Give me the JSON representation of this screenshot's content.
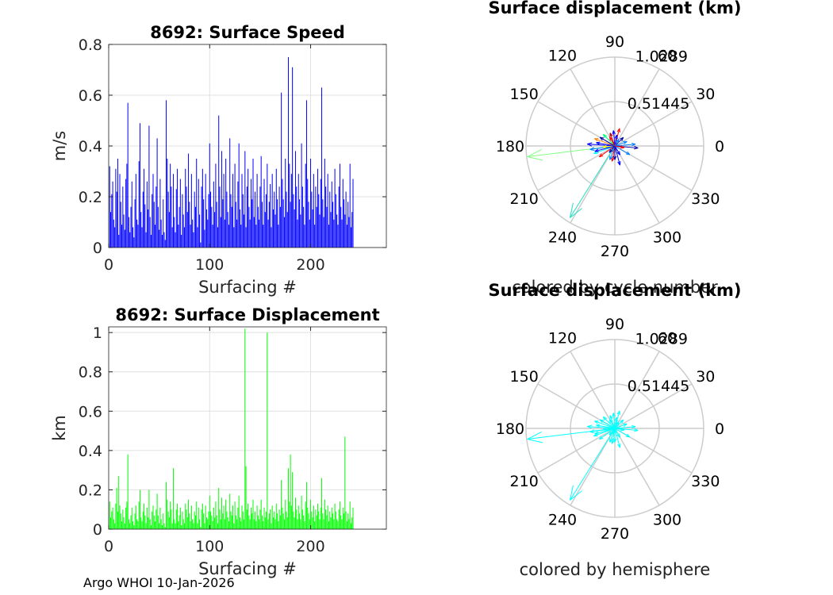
{
  "footer": "Argo WHOI 10-Jan-2026",
  "colors": {
    "speed_bars": "#0000ff",
    "displacement_bars": "#00ff00",
    "hemisphere_arrows": "#00ffff",
    "grid": "#e0e0e0",
    "polar_grid": "#cccccc",
    "axes": "#262626"
  },
  "chart_data": [
    {
      "type": "bar",
      "title": "8692: Surface Speed",
      "xlabel": "Surfacing #",
      "ylabel": "m/s",
      "xlim": [
        0,
        275
      ],
      "ylim": [
        0,
        0.8
      ],
      "xticks": [
        0,
        100,
        200
      ],
      "yticks": [
        0,
        0.2,
        0.4,
        0.6,
        0.8
      ],
      "grid": true,
      "x_start": 1,
      "values": [
        0.32,
        0.14,
        0.21,
        0.26,
        0.11,
        0.08,
        0.31,
        0.22,
        0.35,
        0.05,
        0.29,
        0.18,
        0.09,
        0.24,
        0.13,
        0.07,
        0.27,
        0.33,
        0.57,
        0.12,
        0.06,
        0.16,
        0.26,
        0.08,
        0.04,
        0.19,
        0.29,
        0.11,
        0.09,
        0.34,
        0.49,
        0.14,
        0.08,
        0.22,
        0.31,
        0.17,
        0.06,
        0.26,
        0.15,
        0.48,
        0.12,
        0.05,
        0.21,
        0.29,
        0.18,
        0.09,
        0.24,
        0.43,
        0.16,
        0.07,
        0.27,
        0.11,
        0.05,
        0.19,
        0.06,
        0.03,
        0.58,
        0.35,
        0.22,
        0.14,
        0.33,
        0.24,
        0.08,
        0.29,
        0.12,
        0.06,
        0.23,
        0.31,
        0.09,
        0.16,
        0.27,
        0.05,
        0.21,
        0.13,
        0.08,
        0.31,
        0.24,
        0.14,
        0.37,
        0.18,
        0.09,
        0.29,
        0.11,
        0.06,
        0.22,
        0.16,
        0.35,
        0.08,
        0.27,
        0.13,
        0.02,
        0.24,
        0.31,
        0.19,
        0.07,
        0.29,
        0.15,
        0.11,
        0.21,
        0.41,
        0.22,
        0.16,
        0.09,
        0.26,
        0.14,
        0.33,
        0.18,
        0.08,
        0.52,
        0.24,
        0.12,
        0.38,
        0.19,
        0.29,
        0.11,
        0.35,
        0.22,
        0.14,
        0.09,
        0.43,
        0.21,
        0.16,
        0.29,
        0.08,
        0.33,
        0.18,
        0.11,
        0.26,
        0.41,
        0.15,
        0.09,
        0.29,
        0.21,
        0.13,
        0.38,
        0.08,
        0.24,
        0.31,
        0.16,
        0.11,
        0.27,
        0.19,
        0.35,
        0.12,
        0.22,
        0.09,
        0.29,
        0.16,
        0.11,
        0.24,
        0.36,
        0.18,
        0.09,
        0.27,
        0.14,
        0.21,
        0.33,
        0.11,
        0.18,
        0.25,
        0.08,
        0.29,
        0.15,
        0.22,
        0.13,
        0.31,
        0.19,
        0.09,
        0.24,
        0.16,
        0.61,
        0.27,
        0.19,
        0.12,
        0.35,
        0.22,
        0.14,
        0.75,
        0.33,
        0.18,
        0.29,
        0.71,
        0.21,
        0.15,
        0.38,
        0.24,
        0.11,
        0.29,
        0.19,
        0.13,
        0.41,
        0.24,
        0.16,
        0.09,
        0.33,
        0.58,
        0.27,
        0.18,
        0.11,
        0.35,
        0.22,
        0.15,
        0.29,
        0.09,
        0.24,
        0.16,
        0.31,
        0.21,
        0.13,
        0.27,
        0.63,
        0.19,
        0.12,
        0.35,
        0.24,
        0.16,
        0.29,
        0.09,
        0.22,
        0.14,
        0.26,
        0.18,
        0.11,
        0.31,
        0.21,
        0.13,
        0.09,
        0.24,
        0.33,
        0.16,
        0.11,
        0.27,
        0.19,
        0.13,
        0.22,
        0.09,
        0.18,
        0.12,
        0.33,
        0.08,
        0.14,
        0.27
      ],
      "bar_color": "#0000ff"
    },
    {
      "type": "scatter",
      "subtype": "polar-compass",
      "title": "Surface displacement (km)",
      "caption": "colored by cycle number",
      "rmax": 1.0289,
      "rticks": [
        "0.51445",
        "1.0289"
      ],
      "angle_labels": [
        "0",
        "30",
        "60",
        "90",
        "120",
        "150",
        "180",
        "210",
        "240",
        "270",
        "300",
        "330"
      ],
      "arrow_palette": [
        "#0000aa",
        "#0000ff",
        "#0080ff",
        "#00ffff",
        "#00ff80",
        "#80ff00",
        "#ffff00",
        "#ff8000",
        "#ff0000",
        "#aa0000"
      ],
      "arrows": [
        {
          "r": 1.02,
          "theta": 187,
          "c": "#80ff80"
        },
        {
          "r": 0.98,
          "theta": 238,
          "c": "#20e0c0"
        },
        {
          "r": 0.32,
          "theta": 176,
          "c": "#0000ff"
        },
        {
          "r": 0.29,
          "theta": 188,
          "c": "#0080ff"
        },
        {
          "r": 0.22,
          "theta": 215,
          "c": "#ff0000"
        },
        {
          "r": 0.25,
          "theta": 160,
          "c": "#ff8000"
        },
        {
          "r": 0.18,
          "theta": 95,
          "c": "#0000ff"
        },
        {
          "r": 0.21,
          "theta": 75,
          "c": "#ff0000"
        },
        {
          "r": 0.16,
          "theta": 110,
          "c": "#aa0000"
        },
        {
          "r": 0.24,
          "theta": 5,
          "c": "#0080ff"
        },
        {
          "r": 0.27,
          "theta": 355,
          "c": "#0000aa"
        },
        {
          "r": 0.2,
          "theta": 330,
          "c": "#0080ff"
        },
        {
          "r": 0.23,
          "theta": 285,
          "c": "#0000ff"
        },
        {
          "r": 0.18,
          "theta": 260,
          "c": "#ff0000"
        },
        {
          "r": 0.26,
          "theta": 200,
          "c": "#00ffff"
        },
        {
          "r": 0.14,
          "theta": 45,
          "c": "#0000aa"
        },
        {
          "r": 0.19,
          "theta": 135,
          "c": "#00ff80"
        },
        {
          "r": 0.12,
          "theta": 300,
          "c": "#0000ff"
        },
        {
          "r": 0.15,
          "theta": 20,
          "c": "#0080ff"
        },
        {
          "r": 0.22,
          "theta": 170,
          "c": "#0000ff"
        },
        {
          "r": 0.1,
          "theta": 230,
          "c": "#0000aa"
        },
        {
          "r": 0.17,
          "theta": 250,
          "c": "#0080ff"
        },
        {
          "r": 0.13,
          "theta": 80,
          "c": "#0000ff"
        },
        {
          "r": 0.2,
          "theta": 150,
          "c": "#0000aa"
        },
        {
          "r": 0.11,
          "theta": 350,
          "c": "#ff0000"
        },
        {
          "r": 0.16,
          "theta": 270,
          "c": "#0000aa"
        },
        {
          "r": 0.14,
          "theta": 185,
          "c": "#ffff00"
        },
        {
          "r": 0.09,
          "theta": 60,
          "c": "#0080ff"
        },
        {
          "r": 0.24,
          "theta": 195,
          "c": "#0000ff"
        },
        {
          "r": 0.12,
          "theta": 120,
          "c": "#ff0000"
        }
      ]
    },
    {
      "type": "bar",
      "title": "8692: Surface Displacement",
      "xlabel": "Surfacing #",
      "ylabel": "km",
      "xlim": [
        0,
        275
      ],
      "ylim": [
        0,
        1.0289
      ],
      "xticks": [
        0,
        100,
        200
      ],
      "yticks": [
        0,
        0.2,
        0.4,
        0.6,
        0.8,
        1
      ],
      "grid": true,
      "x_start": 1,
      "values": [
        0.14,
        0.06,
        0.09,
        0.11,
        0.05,
        0.03,
        0.13,
        0.21,
        0.09,
        0.27,
        0.12,
        0.08,
        0.04,
        0.1,
        0.06,
        0.03,
        0.11,
        0.14,
        0.38,
        0.05,
        0.03,
        0.07,
        0.11,
        0.04,
        0.02,
        0.08,
        0.12,
        0.05,
        0.04,
        0.14,
        0.2,
        0.06,
        0.04,
        0.09,
        0.13,
        0.07,
        0.03,
        0.11,
        0.06,
        0.2,
        0.05,
        0.02,
        0.09,
        0.12,
        0.07,
        0.04,
        0.1,
        0.18,
        0.07,
        0.03,
        0.11,
        0.05,
        0.02,
        0.08,
        0.03,
        0.01,
        0.24,
        0.15,
        0.09,
        0.06,
        0.14,
        0.1,
        0.03,
        0.31,
        0.05,
        0.03,
        0.1,
        0.13,
        0.04,
        0.07,
        0.11,
        0.02,
        0.09,
        0.05,
        0.03,
        0.13,
        0.1,
        0.06,
        0.15,
        0.08,
        0.04,
        0.12,
        0.05,
        0.03,
        0.09,
        0.07,
        0.14,
        0.03,
        0.11,
        0.05,
        0.01,
        0.1,
        0.13,
        0.08,
        0.03,
        0.12,
        0.06,
        0.05,
        0.09,
        0.17,
        0.09,
        0.07,
        0.04,
        0.11,
        0.06,
        0.14,
        0.07,
        0.03,
        0.21,
        0.1,
        0.05,
        0.16,
        0.08,
        0.12,
        0.05,
        0.15,
        0.09,
        0.06,
        0.04,
        0.18,
        0.09,
        0.07,
        0.12,
        0.03,
        0.14,
        0.07,
        0.05,
        0.11,
        0.17,
        0.06,
        0.04,
        0.12,
        0.09,
        0.05,
        1.02,
        0.32,
        0.1,
        0.13,
        0.07,
        0.05,
        0.11,
        0.08,
        0.15,
        0.05,
        0.09,
        0.04,
        0.12,
        0.07,
        0.05,
        0.1,
        0.15,
        0.07,
        0.04,
        0.11,
        0.06,
        0.09,
        1.0,
        0.05,
        0.08,
        0.1,
        0.03,
        0.12,
        0.06,
        0.09,
        0.05,
        0.13,
        0.08,
        0.04,
        0.1,
        0.07,
        0.25,
        0.11,
        0.08,
        0.05,
        0.15,
        0.09,
        0.06,
        0.31,
        0.14,
        0.38,
        0.12,
        0.29,
        0.09,
        0.06,
        0.16,
        0.1,
        0.05,
        0.12,
        0.08,
        0.05,
        0.17,
        0.1,
        0.07,
        0.04,
        0.14,
        0.24,
        0.11,
        0.08,
        0.05,
        0.15,
        0.09,
        0.06,
        0.12,
        0.04,
        0.1,
        0.07,
        0.13,
        0.09,
        0.05,
        0.11,
        0.26,
        0.08,
        0.05,
        0.15,
        0.1,
        0.07,
        0.12,
        0.04,
        0.09,
        0.06,
        0.11,
        0.08,
        0.05,
        0.13,
        0.09,
        0.05,
        0.04,
        0.1,
        0.14,
        0.07,
        0.05,
        0.11,
        0.08,
        0.47,
        0.09,
        0.04,
        0.08,
        0.05,
        0.14,
        0.03,
        0.06,
        0.11
      ],
      "bar_color": "#00ff00"
    },
    {
      "type": "scatter",
      "subtype": "polar-compass",
      "title": "Surface displacement (km)",
      "caption": "colored by hemisphere",
      "rmax": 1.0289,
      "rticks": [
        "0.51445",
        "1.0289"
      ],
      "angle_labels": [
        "0",
        "30",
        "60",
        "90",
        "120",
        "150",
        "180",
        "210",
        "240",
        "270",
        "300",
        "330"
      ],
      "arrow_color": "#00ffff",
      "arrows": [
        {
          "r": 1.02,
          "theta": 187
        },
        {
          "r": 0.98,
          "theta": 238
        },
        {
          "r": 0.32,
          "theta": 176
        },
        {
          "r": 0.29,
          "theta": 188
        },
        {
          "r": 0.22,
          "theta": 215
        },
        {
          "r": 0.25,
          "theta": 160
        },
        {
          "r": 0.18,
          "theta": 95
        },
        {
          "r": 0.21,
          "theta": 75
        },
        {
          "r": 0.16,
          "theta": 110
        },
        {
          "r": 0.24,
          "theta": 5
        },
        {
          "r": 0.27,
          "theta": 355
        },
        {
          "r": 0.2,
          "theta": 330
        },
        {
          "r": 0.23,
          "theta": 285
        },
        {
          "r": 0.18,
          "theta": 260
        },
        {
          "r": 0.26,
          "theta": 200
        },
        {
          "r": 0.14,
          "theta": 45
        },
        {
          "r": 0.19,
          "theta": 135
        },
        {
          "r": 0.12,
          "theta": 300
        },
        {
          "r": 0.15,
          "theta": 20
        },
        {
          "r": 0.22,
          "theta": 170
        },
        {
          "r": 0.1,
          "theta": 230
        },
        {
          "r": 0.17,
          "theta": 250
        },
        {
          "r": 0.13,
          "theta": 80
        },
        {
          "r": 0.2,
          "theta": 150
        },
        {
          "r": 0.11,
          "theta": 350
        },
        {
          "r": 0.16,
          "theta": 270
        },
        {
          "r": 0.14,
          "theta": 185
        },
        {
          "r": 0.09,
          "theta": 60
        },
        {
          "r": 0.24,
          "theta": 195
        },
        {
          "r": 0.12,
          "theta": 120
        }
      ]
    }
  ]
}
